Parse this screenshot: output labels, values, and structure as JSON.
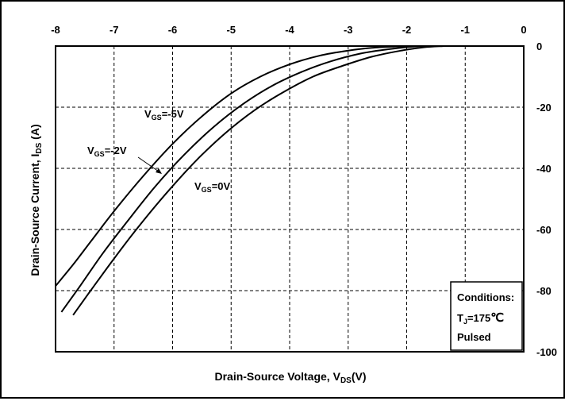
{
  "chart_data": {
    "type": "line",
    "xlabel": {
      "main": "Drain-Source Voltage, V",
      "sub": "DS",
      "tail": "(V)"
    },
    "ylabel": {
      "main": "Drain-Source Current, I",
      "sub": "DS",
      "tail": " (A)"
    },
    "xlim": [
      -8,
      0
    ],
    "ylim": [
      -100,
      0
    ],
    "x_ticks": [
      -8,
      -7,
      -6,
      -5,
      -4,
      -3,
      -2,
      -1,
      0
    ],
    "y_ticks": [
      0,
      -20,
      -40,
      -60,
      -80,
      -100
    ],
    "grid": true,
    "series": [
      {
        "name": {
          "main": "V",
          "sub": "GS",
          "tail": "=-5V"
        },
        "x": [
          -8.0,
          -7.7,
          -7.4,
          -7.0,
          -6.5,
          -6.0,
          -5.5,
          -5.0,
          -4.5,
          -4.0,
          -3.5,
          -3.0,
          -2.6,
          -2.2,
          -1.9
        ],
        "y": [
          -78.5,
          -71.5,
          -64,
          -54,
          -42.5,
          -32,
          -23,
          -15.5,
          -10,
          -6,
          -3.2,
          -1.5,
          -0.6,
          -0.15,
          0
        ]
      },
      {
        "name": {
          "main": "V",
          "sub": "GS",
          "tail": "=-2V"
        },
        "x": [
          -7.9,
          -7.6,
          -7.2,
          -6.8,
          -6.3,
          -5.8,
          -5.3,
          -4.8,
          -4.3,
          -3.8,
          -3.3,
          -2.8,
          -2.3,
          -1.9,
          -1.6
        ],
        "y": [
          -87,
          -79,
          -68,
          -58,
          -46,
          -35.5,
          -26.5,
          -19,
          -13,
          -8.5,
          -5,
          -2.5,
          -1,
          -0.2,
          0
        ]
      },
      {
        "name": {
          "main": "V",
          "sub": "GS",
          "tail": "=0V"
        },
        "x": [
          -7.7,
          -7.4,
          -7.0,
          -6.6,
          -6.1,
          -5.6,
          -5.1,
          -4.6,
          -4.1,
          -3.6,
          -3.1,
          -2.6,
          -2.1,
          -1.7,
          -1.35
        ],
        "y": [
          -88,
          -80,
          -69.5,
          -59.5,
          -48,
          -37.5,
          -28.5,
          -21,
          -15,
          -10,
          -6.5,
          -3.5,
          -1.5,
          -0.4,
          0
        ]
      }
    ],
    "conditions": {
      "title": "Conditions:",
      "tj_main": "T",
      "tj_sub": "J",
      "tj_value": "=175",
      "tj_unit": "℃",
      "mode": "Pulsed"
    }
  }
}
